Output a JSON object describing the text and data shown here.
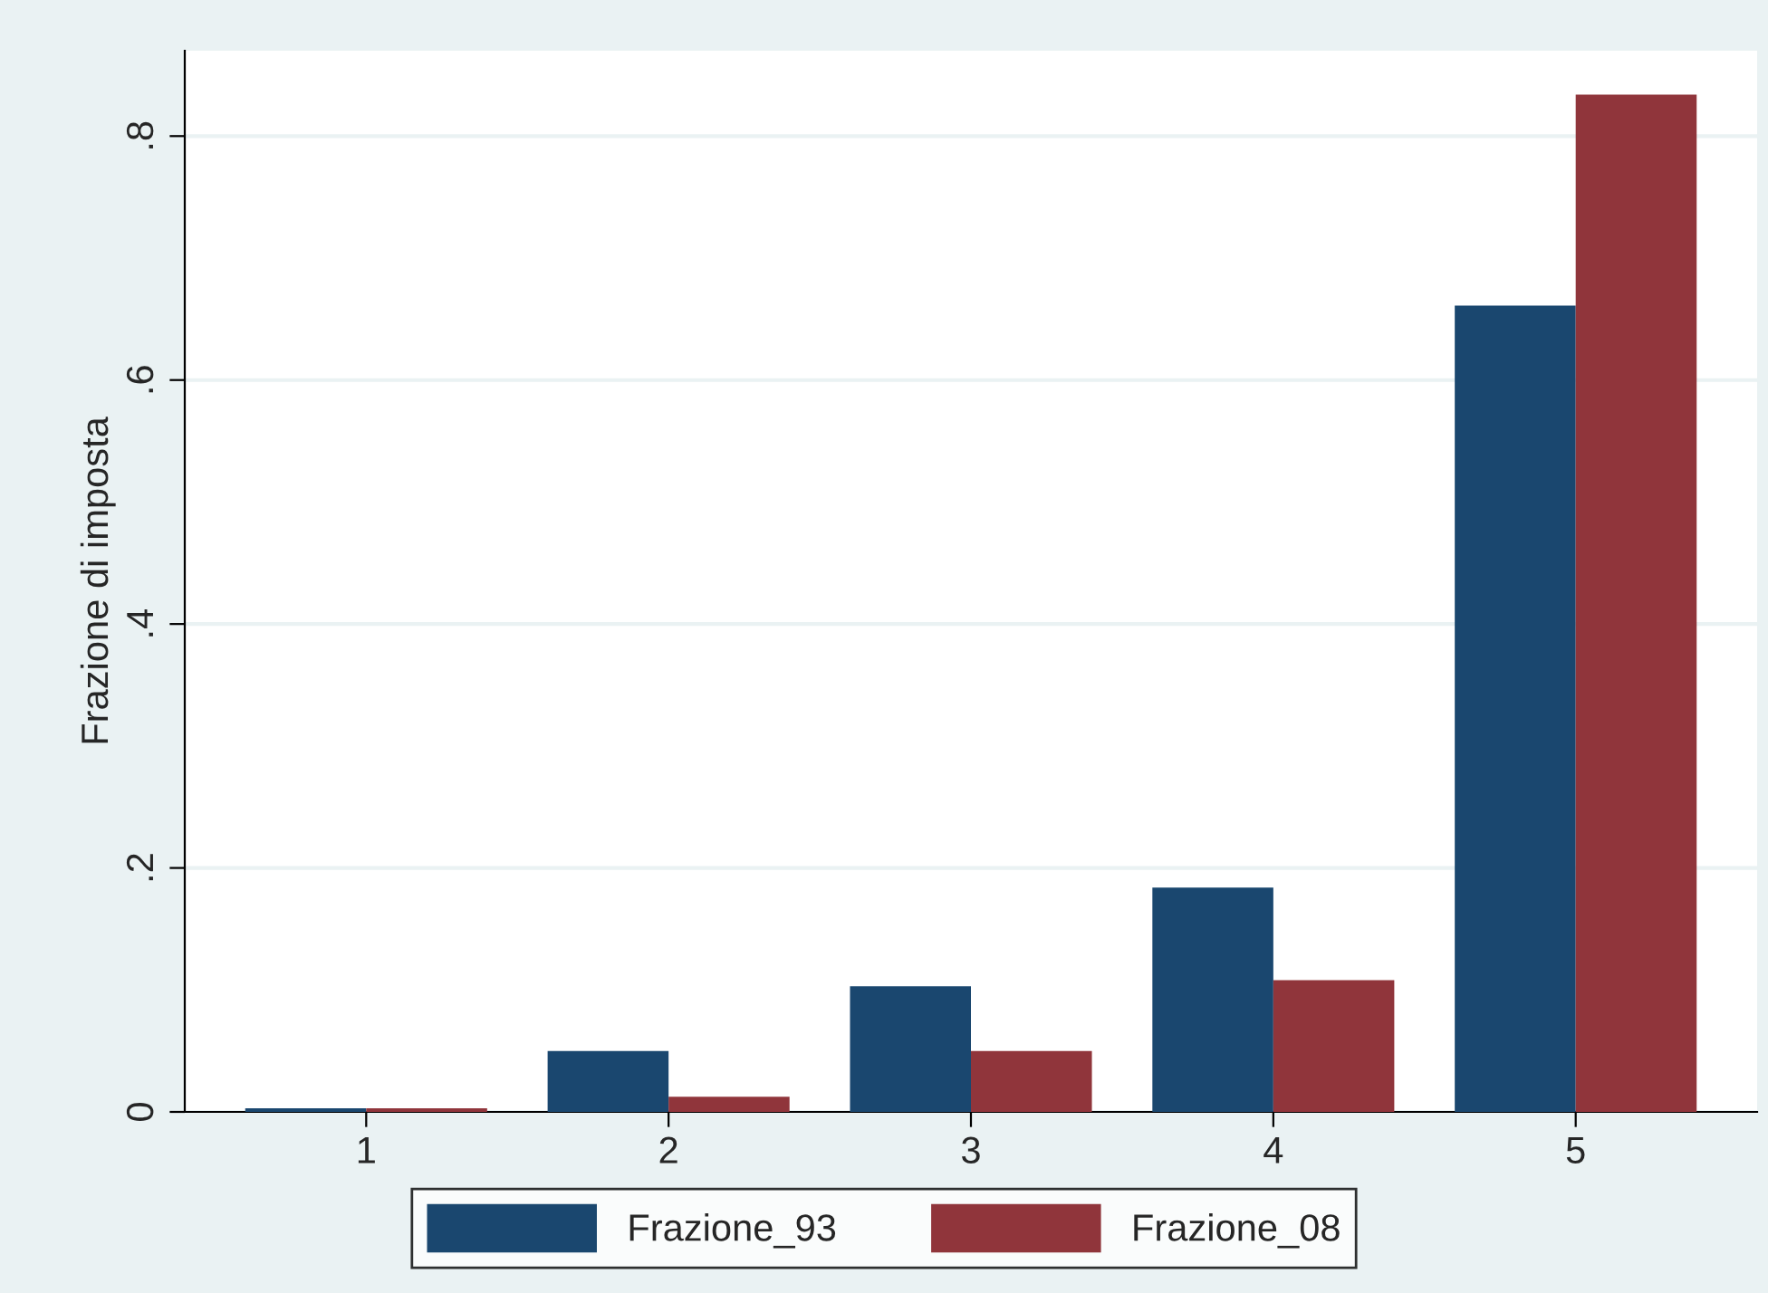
{
  "chart_data": {
    "type": "bar",
    "ylabel": "Frazione di imposta",
    "categories": [
      "1",
      "2",
      "3",
      "4",
      "5"
    ],
    "series": [
      {
        "name": "Frazione_93",
        "color": "#1a476f",
        "values": [
          0.003,
          0.05,
          0.103,
          0.184,
          0.661
        ]
      },
      {
        "name": "Frazione_08",
        "color": "#90353b",
        "values": [
          0.003,
          0.0125,
          0.05,
          0.108,
          0.834
        ]
      }
    ],
    "ylim": [
      0,
      0.87
    ],
    "yticks": [
      0,
      {
        "value": 0.2,
        "label": ".2"
      },
      {
        "value": 0.4,
        "label": ".4"
      },
      {
        "value": 0.6,
        "label": ".6"
      },
      {
        "value": 0.8,
        "label": ".8"
      }
    ],
    "grid": "y",
    "legend": "bottom"
  }
}
